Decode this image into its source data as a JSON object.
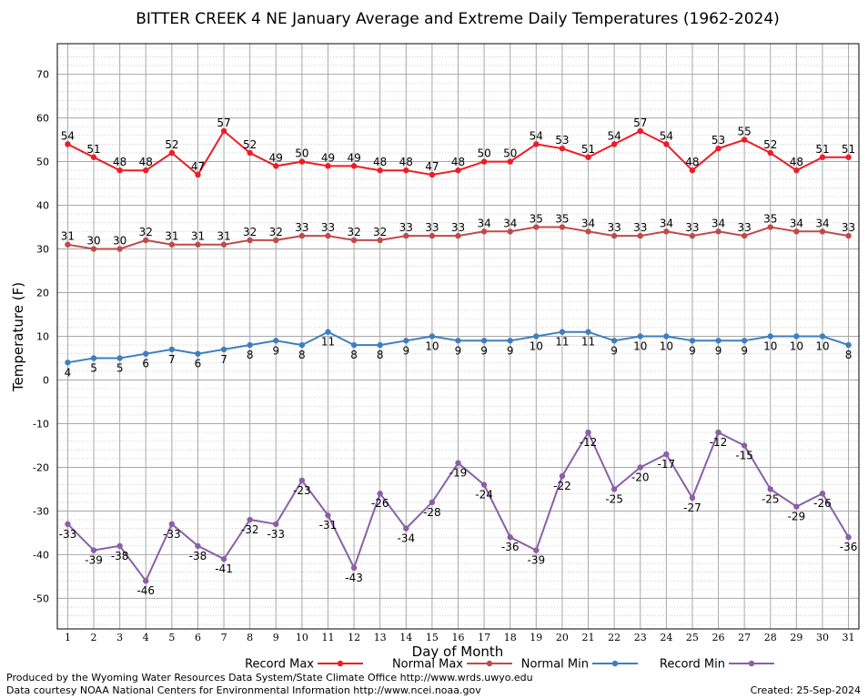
{
  "chart_data": {
    "type": "line",
    "title": "BITTER CREEK 4 NE January Average and Extreme Daily Temperatures (1962-2024)",
    "xlabel": "Day of Month",
    "ylabel": "Temperature (F)",
    "ylim": [
      -57,
      77
    ],
    "xlim": [
      0.6,
      31.4
    ],
    "yticks": [
      70,
      60,
      50,
      40,
      30,
      20,
      10,
      0,
      -10,
      -20,
      -30,
      -40,
      -50
    ],
    "x": [
      1,
      2,
      3,
      4,
      5,
      6,
      7,
      8,
      9,
      10,
      11,
      12,
      13,
      14,
      15,
      16,
      17,
      18,
      19,
      20,
      21,
      22,
      23,
      24,
      25,
      26,
      27,
      28,
      29,
      30,
      31
    ],
    "grid": true,
    "legend_position": "bottom",
    "series": [
      {
        "name": "Record Max",
        "color": "#ee1c25",
        "values": [
          54,
          51,
          48,
          48,
          52,
          47,
          57,
          52,
          49,
          50,
          49,
          49,
          48,
          48,
          47,
          48,
          50,
          50,
          54,
          53,
          51,
          54,
          57,
          54,
          48,
          53,
          55,
          52,
          48,
          51,
          51
        ]
      },
      {
        "name": "Normal Max",
        "color": "#c04a4a",
        "values": [
          31,
          30,
          30,
          32,
          31,
          31,
          31,
          32,
          32,
          33,
          33,
          32,
          32,
          33,
          33,
          33,
          34,
          34,
          35,
          35,
          34,
          33,
          33,
          34,
          33,
          34,
          33,
          35,
          34,
          34,
          33
        ]
      },
      {
        "name": "Normal Min",
        "color": "#3e7fc0",
        "values": [
          4,
          5,
          5,
          6,
          7,
          6,
          7,
          8,
          9,
          8,
          11,
          8,
          8,
          9,
          10,
          9,
          9,
          9,
          10,
          11,
          11,
          9,
          10,
          10,
          9,
          9,
          9,
          10,
          10,
          10,
          8
        ]
      },
      {
        "name": "Record Min",
        "color": "#8a5fa8",
        "values": [
          -33,
          -39,
          -38,
          -46,
          -33,
          -38,
          -41,
          -32,
          -33,
          -23,
          -31,
          -43,
          -26,
          -34,
          -28,
          -19,
          -24,
          -36,
          -39,
          -22,
          -12,
          -25,
          -20,
          -17,
          -27,
          -12,
          -15,
          -25,
          -29,
          -26,
          -36
        ]
      }
    ]
  },
  "footer": {
    "line1": "Produced by the Wyoming Water Resources Data System/State Climate Office http://www.wrds.uwyo.edu",
    "line2": "Data courtesy NOAA National Centers for Environmental Information http://www.ncei.noaa.gov",
    "created": "Created:  25-Sep-2024"
  }
}
